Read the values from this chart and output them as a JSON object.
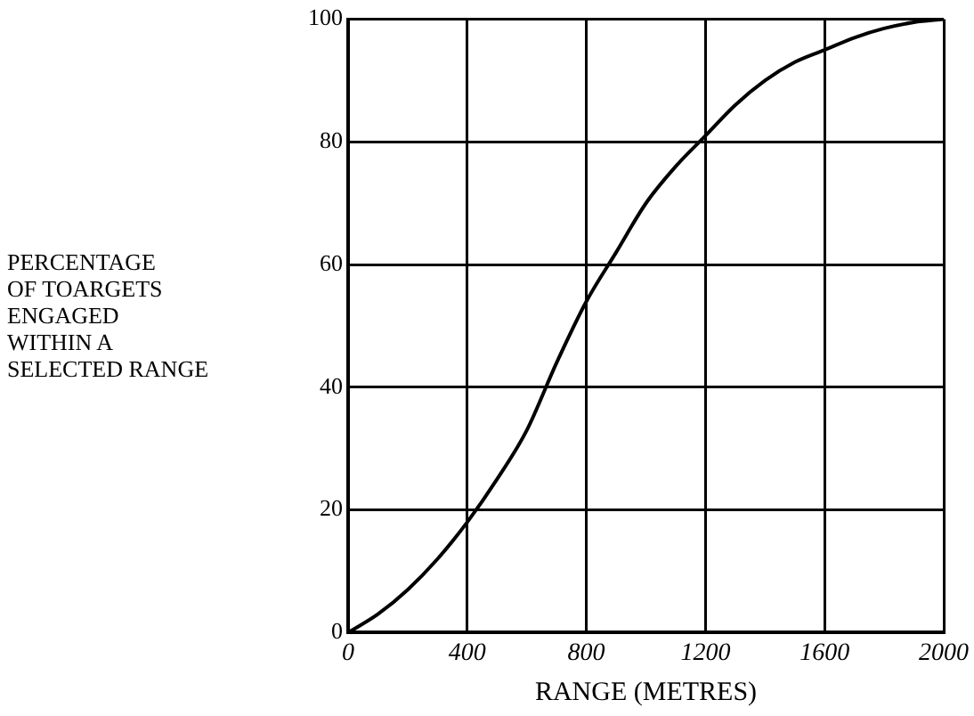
{
  "chart_data": {
    "type": "line",
    "xlabel": "RANGE (METRES)",
    "ylabel": "PERCENTAGE\nOF TOARGETS\nENGAGED\nWITHIN A\nSELECTED RANGE",
    "x": [
      0,
      100,
      200,
      300,
      400,
      500,
      600,
      700,
      800,
      900,
      1000,
      1100,
      1200,
      1300,
      1400,
      1500,
      1600,
      1700,
      1800,
      1900,
      2000
    ],
    "series": [
      {
        "color": "#000000",
        "values": [
          0,
          3,
          7,
          12,
          18,
          25,
          33,
          44,
          54,
          62,
          70,
          76,
          81,
          86,
          90,
          93,
          95,
          97,
          98.5,
          99.5,
          100
        ]
      }
    ],
    "xlim": [
      0,
      2000
    ],
    "xticks": [
      0,
      400,
      800,
      1200,
      1600,
      2000
    ],
    "ylim": [
      0,
      100
    ],
    "yticks": [
      0,
      20,
      40,
      60,
      80,
      100
    ],
    "grid": true,
    "legend": false,
    "marker": "none",
    "line_style": "solid"
  }
}
